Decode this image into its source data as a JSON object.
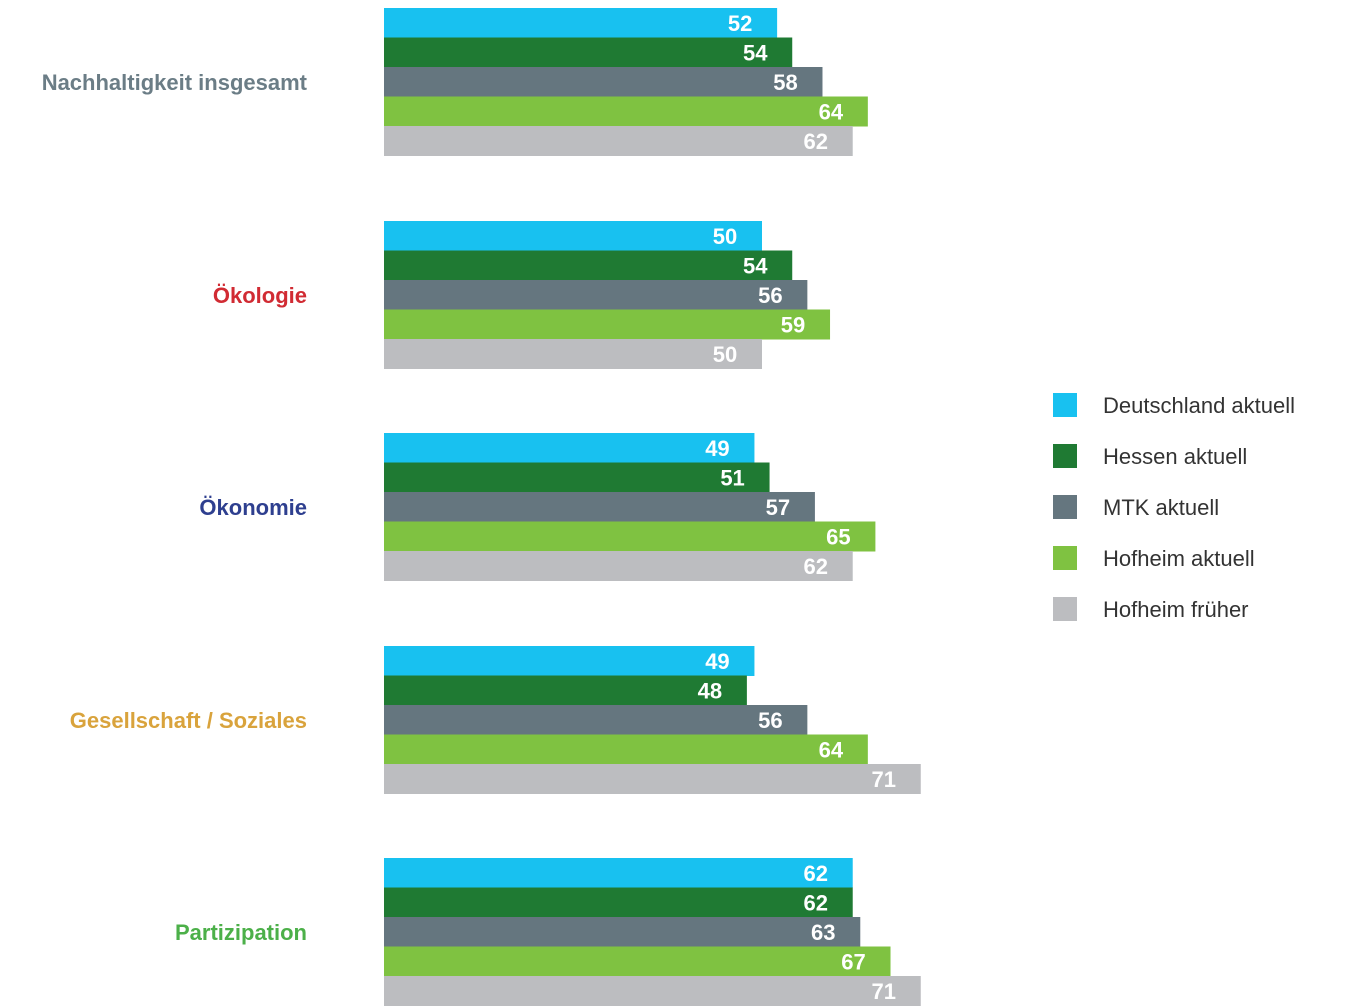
{
  "chart_data": {
    "type": "bar",
    "orientation": "horizontal",
    "categories": [
      "Nachhaltigkeit insgesamt",
      "Ökologie",
      "Ökonomie",
      "Gesellschaft / Soziales",
      "Partizipation"
    ],
    "category_colors": [
      "#6b7d86",
      "#d12b33",
      "#2e3f8f",
      "#d9a33c",
      "#4cb049"
    ],
    "series": [
      {
        "name": "Deutschland aktuell",
        "color": "#18c1f0",
        "values": [
          52,
          50,
          49,
          49,
          62
        ]
      },
      {
        "name": "Hessen aktuell",
        "color": "#1f7a33",
        "values": [
          54,
          54,
          51,
          48,
          62
        ]
      },
      {
        "name": "MTK aktuell",
        "color": "#65767f",
        "values": [
          58,
          56,
          57,
          56,
          63
        ]
      },
      {
        "name": "Hofheim aktuell",
        "color": "#7fc241",
        "values": [
          64,
          59,
          65,
          64,
          67
        ]
      },
      {
        "name": "Hofheim früher",
        "color": "#bcbdc0",
        "values": [
          62,
          50,
          62,
          71,
          71
        ]
      }
    ],
    "legend_position": "right",
    "grid": false,
    "value_labels": true
  }
}
